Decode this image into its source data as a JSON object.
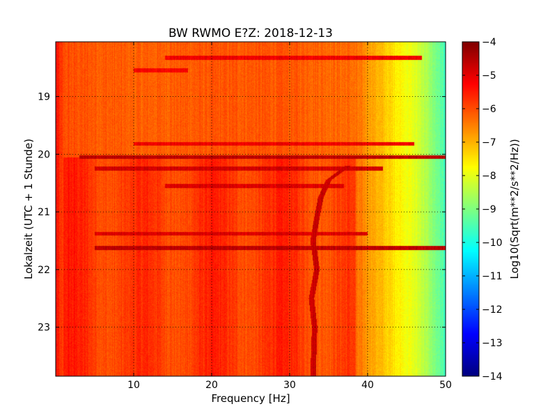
{
  "chart_data": {
    "type": "heatmap",
    "title": "BW RWMO E?Z: 2018-12-13",
    "xlabel": "Frequency [Hz]",
    "ylabel": "Lokalzeit (UTC + 1 Stunde)",
    "xlim": [
      0,
      50
    ],
    "ylim": [
      23.85,
      18.05
    ],
    "x_ticks": [
      10,
      20,
      30,
      40,
      50
    ],
    "y_ticks": [
      19,
      20,
      21,
      22,
      23
    ],
    "grid": true,
    "colormap": "jet",
    "colorbar": {
      "label": "Log10(Sqrt(m**2/s**2/Hz))",
      "range": [
        -14,
        -4
      ],
      "ticks": [
        -4,
        -5,
        -6,
        -7,
        -8,
        -9,
        -10,
        -11,
        -12,
        -13,
        -14
      ]
    },
    "baseline_level_by_frequency": [
      {
        "f": 0,
        "v": -5.4
      },
      {
        "f": 1,
        "v": -6.0
      },
      {
        "f": 5,
        "v": -6.1
      },
      {
        "f": 10,
        "v": -6.2
      },
      {
        "f": 20,
        "v": -6.1
      },
      {
        "f": 30,
        "v": -6.1
      },
      {
        "f": 38,
        "v": -6.3
      },
      {
        "f": 40,
        "v": -6.7
      },
      {
        "f": 43,
        "v": -7.4
      },
      {
        "f": 45,
        "v": -7.8
      },
      {
        "f": 47,
        "v": -8.3
      },
      {
        "f": 49,
        "v": -9.2
      },
      {
        "f": 50,
        "v": -9.6
      }
    ],
    "active_period": {
      "start": 20.05,
      "end": 23.85,
      "f_max": 38.5,
      "level_increase": 0.55
    },
    "time_bands": [
      {
        "t": 18.33,
        "f_from": 14,
        "f_to": 47,
        "v": -5.1
      },
      {
        "t": 18.55,
        "f_from": 10,
        "f_to": 17,
        "v": -5.2
      },
      {
        "t": 19.82,
        "f_from": 10,
        "f_to": 46,
        "v": -5.1
      },
      {
        "t": 20.05,
        "f_from": 3,
        "f_to": 50,
        "v": -4.6
      },
      {
        "t": 20.25,
        "f_from": 5,
        "f_to": 42,
        "v": -4.8
      },
      {
        "t": 20.55,
        "f_from": 14,
        "f_to": 37,
        "v": -4.9
      },
      {
        "t": 21.38,
        "f_from": 5,
        "f_to": 40,
        "v": -4.9
      },
      {
        "t": 21.63,
        "f_from": 5,
        "f_to": 50,
        "v": -4.6
      }
    ],
    "tone_track": [
      {
        "t": 20.2,
        "f": 37.5
      },
      {
        "t": 20.45,
        "f": 35
      },
      {
        "t": 20.75,
        "f": 34
      },
      {
        "t": 21.1,
        "f": 33.5
      },
      {
        "t": 21.5,
        "f": 33
      },
      {
        "t": 22.0,
        "f": 33.5
      },
      {
        "t": 22.5,
        "f": 32.8
      },
      {
        "t": 23.0,
        "f": 33.2
      },
      {
        "t": 23.85,
        "f": 33
      }
    ]
  }
}
